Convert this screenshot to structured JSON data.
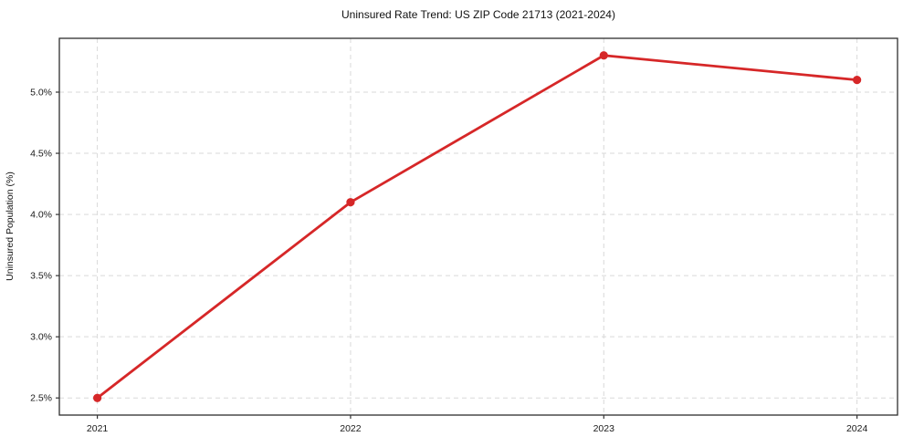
{
  "chart_data": {
    "type": "line",
    "title": "Uninsured Rate Trend: US ZIP Code 21713 (2021-2024)",
    "xlabel": "",
    "ylabel": "Uninsured Population (%)",
    "x": [
      2021,
      2022,
      2023,
      2024
    ],
    "values": [
      2.5,
      4.1,
      5.3,
      5.1
    ],
    "series_name": "Uninsured rate",
    "xtick_labels": [
      "2021",
      "2022",
      "2023",
      "2024"
    ],
    "yticks": [
      2.5,
      3.0,
      3.5,
      4.0,
      4.5,
      5.0
    ],
    "ytick_labels": [
      "2.5%",
      "3.0%",
      "3.5%",
      "4.0%",
      "4.5%",
      "5.0%"
    ],
    "xlim": [
      2020.85,
      2024.16
    ],
    "ylim": [
      2.36,
      5.44
    ],
    "grid": "both-dashed",
    "legend": "none",
    "line_color": "#d62728",
    "marker_color": "#d62728",
    "grid_color": "#d9d9d9",
    "spine_color": "#2e2e2e",
    "tick_color": "#333333"
  }
}
